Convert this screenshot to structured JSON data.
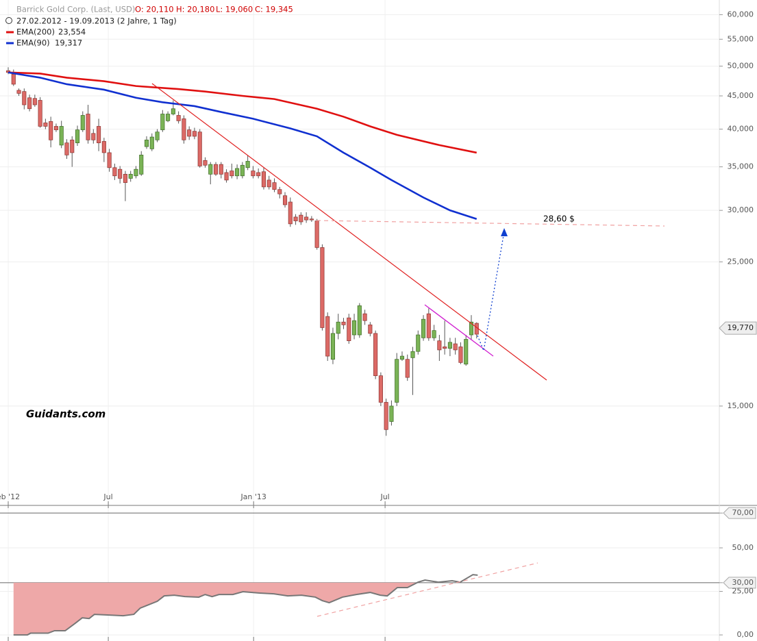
{
  "chart_data": [
    {
      "type": "candlestick",
      "title": "Barrick Gold Corp. (Last, USD)",
      "ohlc_labels": [
        "O: 20,110",
        "H: 20,180",
        "L: 19,060",
        "C: 19,345"
      ],
      "subtitle": "27.02.2012 - 19.09.2013 (2 Jahre, 1 Tag)",
      "watermark": "Guidants.com",
      "annotation": "28,60 $",
      "up_color": "#7ab356",
      "down_color": "#dc6a66",
      "log_scale": true,
      "grid": true,
      "ylim": [
        10.55,
        63.2
      ],
      "yticks": [
        {
          "value": 60,
          "label": "60,000"
        },
        {
          "value": 55,
          "label": "55,000"
        },
        {
          "value": 50,
          "label": "50,000"
        },
        {
          "value": 45,
          "label": "45,000"
        },
        {
          "value": 40,
          "label": "40,000"
        },
        {
          "value": 35,
          "label": "35,000"
        },
        {
          "value": 30,
          "label": "30,000"
        },
        {
          "value": 25,
          "label": "25,000"
        },
        {
          "value": 15,
          "label": "15,000"
        }
      ],
      "xlim": [
        0,
        139
      ],
      "xticks": [
        {
          "value": 0,
          "label": "eb '12"
        },
        {
          "value": 18.8,
          "label": "Jul"
        },
        {
          "value": 46.1,
          "label": "Jan '13"
        },
        {
          "value": 70.8,
          "label": "Jul"
        }
      ],
      "last_price": {
        "value": 19.77,
        "label": "19,770"
      },
      "open": [
        49.2,
        48.6,
        45.9,
        45.7,
        44.7,
        44.6,
        44.3,
        40.9,
        41.1,
        40.4,
        37.8,
        38.1,
        38.5,
        38.1,
        39.9,
        42.2,
        39.4,
        40.4,
        38.3,
        36.8,
        34.9,
        34.7,
        34.1,
        33.6,
        33.9,
        34.1,
        37.6,
        37.3,
        38.5,
        39.9,
        41.2,
        42.2,
        42.0,
        41.5,
        39.9,
        39.7,
        39.6,
        35.8,
        34.1,
        35.3,
        35.3,
        34.3,
        34.5,
        33.9,
        33.9,
        34.9,
        34.5,
        34.3,
        34.4,
        33.4,
        33.1,
        32.3,
        31.6,
        30.9,
        29.3,
        29.5,
        29.3,
        29.1,
        28.9,
        26.3,
        20.6,
        17.7,
        19.4,
        20.2,
        20.5,
        19.3,
        19.3,
        20.8,
        20.0,
        19.4,
        16.7,
        15.2,
        14.2,
        15.2,
        17.7,
        17.7,
        17.8,
        18.2,
        19.1,
        20.8,
        19.1,
        18.9,
        18.5,
        18.4,
        18.7,
        18.5,
        17.4,
        19.3,
        20.11
      ],
      "high": [
        49.8,
        49.4,
        46.2,
        46.2,
        45.2,
        45.2,
        44.8,
        41.5,
        41.8,
        40.8,
        41.2,
        38.6,
        39.0,
        40.5,
        42.6,
        43.6,
        40.0,
        41.5,
        38.8,
        37.3,
        35.4,
        35.1,
        34.5,
        34.5,
        35.1,
        37.0,
        39.0,
        39.4,
        40.0,
        42.8,
        42.6,
        44.3,
        42.6,
        42.0,
        40.4,
        40.2,
        40.0,
        36.2,
        35.6,
        35.6,
        35.6,
        34.7,
        35.4,
        35.3,
        35.6,
        36.5,
        35.1,
        34.8,
        34.9,
        33.9,
        33.6,
        32.6,
        32.0,
        31.4,
        29.6,
        29.8,
        29.8,
        29.4,
        29.1,
        26.6,
        20.9,
        19.8,
        20.8,
        20.5,
        20.8,
        20.8,
        21.6,
        21.1,
        20.2,
        19.6,
        16.9,
        15.4,
        15.3,
        18.1,
        18.2,
        18.0,
        18.5,
        19.6,
        20.7,
        21.2,
        20.0,
        19.3,
        20.3,
        19.1,
        19.1,
        18.8,
        19.3,
        20.7,
        20.18
      ],
      "low": [
        48.6,
        46.6,
        45.0,
        42.9,
        42.6,
        43.3,
        40.2,
        40.0,
        37.5,
        39.6,
        37.4,
        36.0,
        35.0,
        37.7,
        39.6,
        38.0,
        38.0,
        37.0,
        35.6,
        34.4,
        33.4,
        33.0,
        31.0,
        33.2,
        33.6,
        33.9,
        37.3,
        37.0,
        38.2,
        39.6,
        41.0,
        42.0,
        40.8,
        38.0,
        38.5,
        38.6,
        34.9,
        34.9,
        32.9,
        33.9,
        33.6,
        33.1,
        33.6,
        33.5,
        33.6,
        34.6,
        33.6,
        33.6,
        32.3,
        32.3,
        32.0,
        31.3,
        30.3,
        28.3,
        28.5,
        28.5,
        28.7,
        28.8,
        26.1,
        19.6,
        17.6,
        17.4,
        19.0,
        19.7,
        18.7,
        19.0,
        19.1,
        20.0,
        19.2,
        16.5,
        15.0,
        13.5,
        14.0,
        15.0,
        17.6,
        16.4,
        15.6,
        18.0,
        18.9,
        18.9,
        18.9,
        17.6,
        18.0,
        17.9,
        18.0,
        17.4,
        17.3,
        19.0,
        19.06
      ],
      "close": [
        48.9,
        46.9,
        45.4,
        43.6,
        43.0,
        43.6,
        40.4,
        40.4,
        38.5,
        39.9,
        40.4,
        36.5,
        36.8,
        39.9,
        42.0,
        38.5,
        38.5,
        38.1,
        36.8,
        34.9,
        33.9,
        33.6,
        33.1,
        34.1,
        34.7,
        36.5,
        38.5,
        38.9,
        39.6,
        42.2,
        42.2,
        43.0,
        41.2,
        38.5,
        39.0,
        39.0,
        35.1,
        35.2,
        35.3,
        34.1,
        34.1,
        33.4,
        33.9,
        34.8,
        35.2,
        35.7,
        33.9,
        33.9,
        32.6,
        32.6,
        32.3,
        31.8,
        30.6,
        28.6,
        28.9,
        28.8,
        29.0,
        29.0,
        26.3,
        19.8,
        17.9,
        19.4,
        20.2,
        20.0,
        18.9,
        20.3,
        21.4,
        20.3,
        19.4,
        16.7,
        15.2,
        13.8,
        15.0,
        17.7,
        17.9,
        16.6,
        18.2,
        19.3,
        20.4,
        19.1,
        19.6,
        18.3,
        18.4,
        18.8,
        18.3,
        17.5,
        19.0,
        20.2,
        19.345
      ],
      "series": [
        {
          "name": "EMA(200)",
          "legend_value": "23,554",
          "color": "#e01010",
          "x": [
            0,
            6,
            11,
            18,
            24,
            32,
            37,
            44,
            50,
            58,
            63,
            68,
            73,
            81,
            88
          ],
          "values": [
            48.9,
            48.7,
            48.0,
            47.4,
            46.6,
            46.1,
            45.7,
            45.0,
            44.5,
            43.0,
            41.8,
            40.4,
            39.2,
            37.8,
            36.8
          ]
        },
        {
          "name": "EMA(90)",
          "legend_value": "19,317",
          "color": "#1030d0",
          "x": [
            0,
            6,
            11,
            18,
            24,
            29,
            35,
            40,
            46,
            53,
            58,
            63,
            68,
            72,
            78,
            83,
            88
          ],
          "values": [
            48.9,
            48.0,
            46.9,
            46.0,
            44.7,
            44.0,
            43.4,
            42.5,
            41.5,
            40.1,
            39.0,
            36.8,
            34.9,
            33.4,
            31.4,
            30.0,
            29.1
          ]
        }
      ]
    },
    {
      "type": "line",
      "ylim": [
        -3.5,
        73.6
      ],
      "yticks": [
        {
          "value": 70,
          "label": "70,00"
        },
        {
          "value": 50,
          "label": "50,00"
        },
        {
          "value": 30,
          "label": "30,00"
        },
        {
          "value": 25,
          "label": "25,00"
        },
        {
          "value": 0,
          "label": "0,00"
        }
      ],
      "levels": [
        70,
        30
      ],
      "fill_color": "#eea8a8",
      "series": [
        {
          "color": "#777777",
          "x": [
            1,
            3.6,
            4.2,
            7.5,
            8.7,
            10.7,
            12.6,
            13.9,
            15.2,
            16.2,
            19,
            21.6,
            23.6,
            24.8,
            26.1,
            28,
            29.3,
            31.2,
            33.2,
            35.8,
            37,
            38.3,
            39.6,
            42.2,
            44.1,
            47.4,
            49.9,
            52.5,
            55.1,
            57.7,
            59,
            60.3,
            62.8,
            65.4,
            68,
            69.9,
            71.2,
            73.1,
            75,
            77,
            78.3,
            80.8,
            83.4,
            84.9,
            87.3,
            88.2
          ],
          "values": [
            0,
            0,
            1,
            1,
            2.4,
            2.4,
            6.7,
            9.8,
            9.4,
            11.8,
            11.4,
            11,
            11.8,
            15.4,
            17,
            19.3,
            22.4,
            22.8,
            22,
            21.7,
            23.2,
            22,
            23.2,
            23.2,
            24.8,
            24,
            23.6,
            22.4,
            22.8,
            21.7,
            19.7,
            18.5,
            21.7,
            23.2,
            24.4,
            22.8,
            22.4,
            27.2,
            27.2,
            30.3,
            31.5,
            30.3,
            31.1,
            30.3,
            34.6,
            34.3
          ]
        }
      ]
    }
  ]
}
